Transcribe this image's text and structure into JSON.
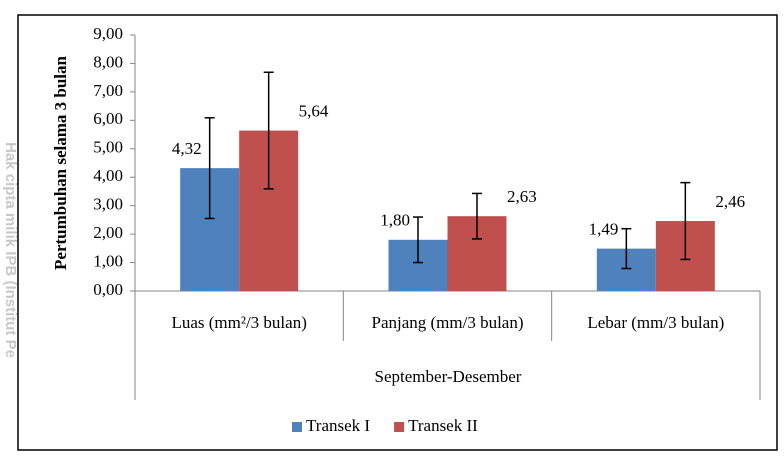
{
  "chart_data": {
    "type": "bar",
    "y_label": "Pertumbuhan selama 3 bulan",
    "x_label": "September-Desember",
    "watermark": "Hak cipta milik IPB (Institut Pe",
    "categories": [
      "Luas (mm²/3 bulan)",
      "Panjang (mm/3 bulan)",
      "Lebar (mm/3 bulan)"
    ],
    "series": [
      {
        "name": "Transek I",
        "color": "#4f81bd",
        "values": [
          4.32,
          1.8,
          1.49
        ],
        "value_labels": [
          "4,32",
          "1,80",
          "1,49"
        ],
        "errors": [
          1.77,
          0.8,
          0.7
        ]
      },
      {
        "name": "Transek II",
        "color": "#c0504d",
        "values": [
          5.64,
          2.63,
          2.46
        ],
        "value_labels": [
          "5,64",
          "2,63",
          "2,46"
        ],
        "errors": [
          2.05,
          0.8,
          1.35
        ]
      }
    ],
    "ylim": [
      0,
      9
    ],
    "yticks": [
      {
        "value": 0,
        "label": "0,00"
      },
      {
        "value": 1,
        "label": "1,00"
      },
      {
        "value": 2,
        "label": "2,00"
      },
      {
        "value": 3,
        "label": "3,00"
      },
      {
        "value": 4,
        "label": "4,00"
      },
      {
        "value": 5,
        "label": "5,00"
      },
      {
        "value": 6,
        "label": "6,00"
      },
      {
        "value": 7,
        "label": "7,00"
      },
      {
        "value": 8,
        "label": "8,00"
      },
      {
        "value": 9,
        "label": "9,00"
      }
    ],
    "legend": "bottom"
  }
}
